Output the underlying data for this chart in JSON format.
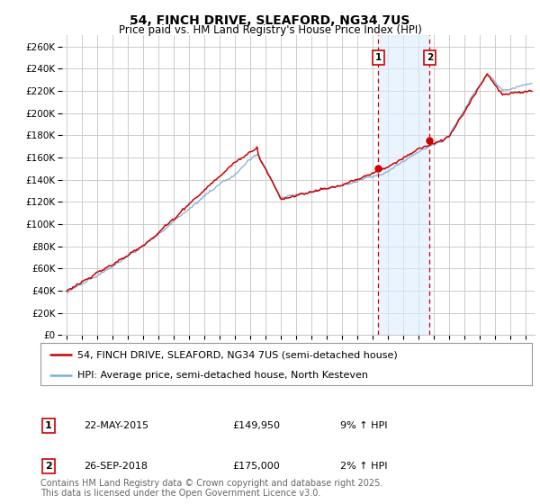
{
  "title": "54, FINCH DRIVE, SLEAFORD, NG34 7US",
  "subtitle": "Price paid vs. HM Land Registry's House Price Index (HPI)",
  "ylim": [
    0,
    270000
  ],
  "yticks": [
    0,
    20000,
    40000,
    60000,
    80000,
    100000,
    120000,
    140000,
    160000,
    180000,
    200000,
    220000,
    240000,
    260000
  ],
  "sale1_year": 2015.384,
  "sale1_price": 149950,
  "sale1_label": "9% ↑ HPI",
  "sale1_date_str": "22-MAY-2015",
  "sale2_year": 2018.736,
  "sale2_price": 175000,
  "sale2_label": "2% ↑ HPI",
  "sale2_date_str": "26-SEP-2018",
  "red_color": "#cc0000",
  "blue_color": "#7aafd4",
  "shade_color": "#ddeeff",
  "grid_color": "#cccccc",
  "legend_label_red": "54, FINCH DRIVE, SLEAFORD, NG34 7US (semi-detached house)",
  "legend_label_blue": "HPI: Average price, semi-detached house, North Kesteven",
  "footnote": "Contains HM Land Registry data © Crown copyright and database right 2025.\nThis data is licensed under the Open Government Licence v3.0.",
  "title_fontsize": 10,
  "subtitle_fontsize": 8.5,
  "tick_fontsize": 7.5,
  "legend_fontsize": 8,
  "table_fontsize": 8,
  "footnote_fontsize": 7
}
